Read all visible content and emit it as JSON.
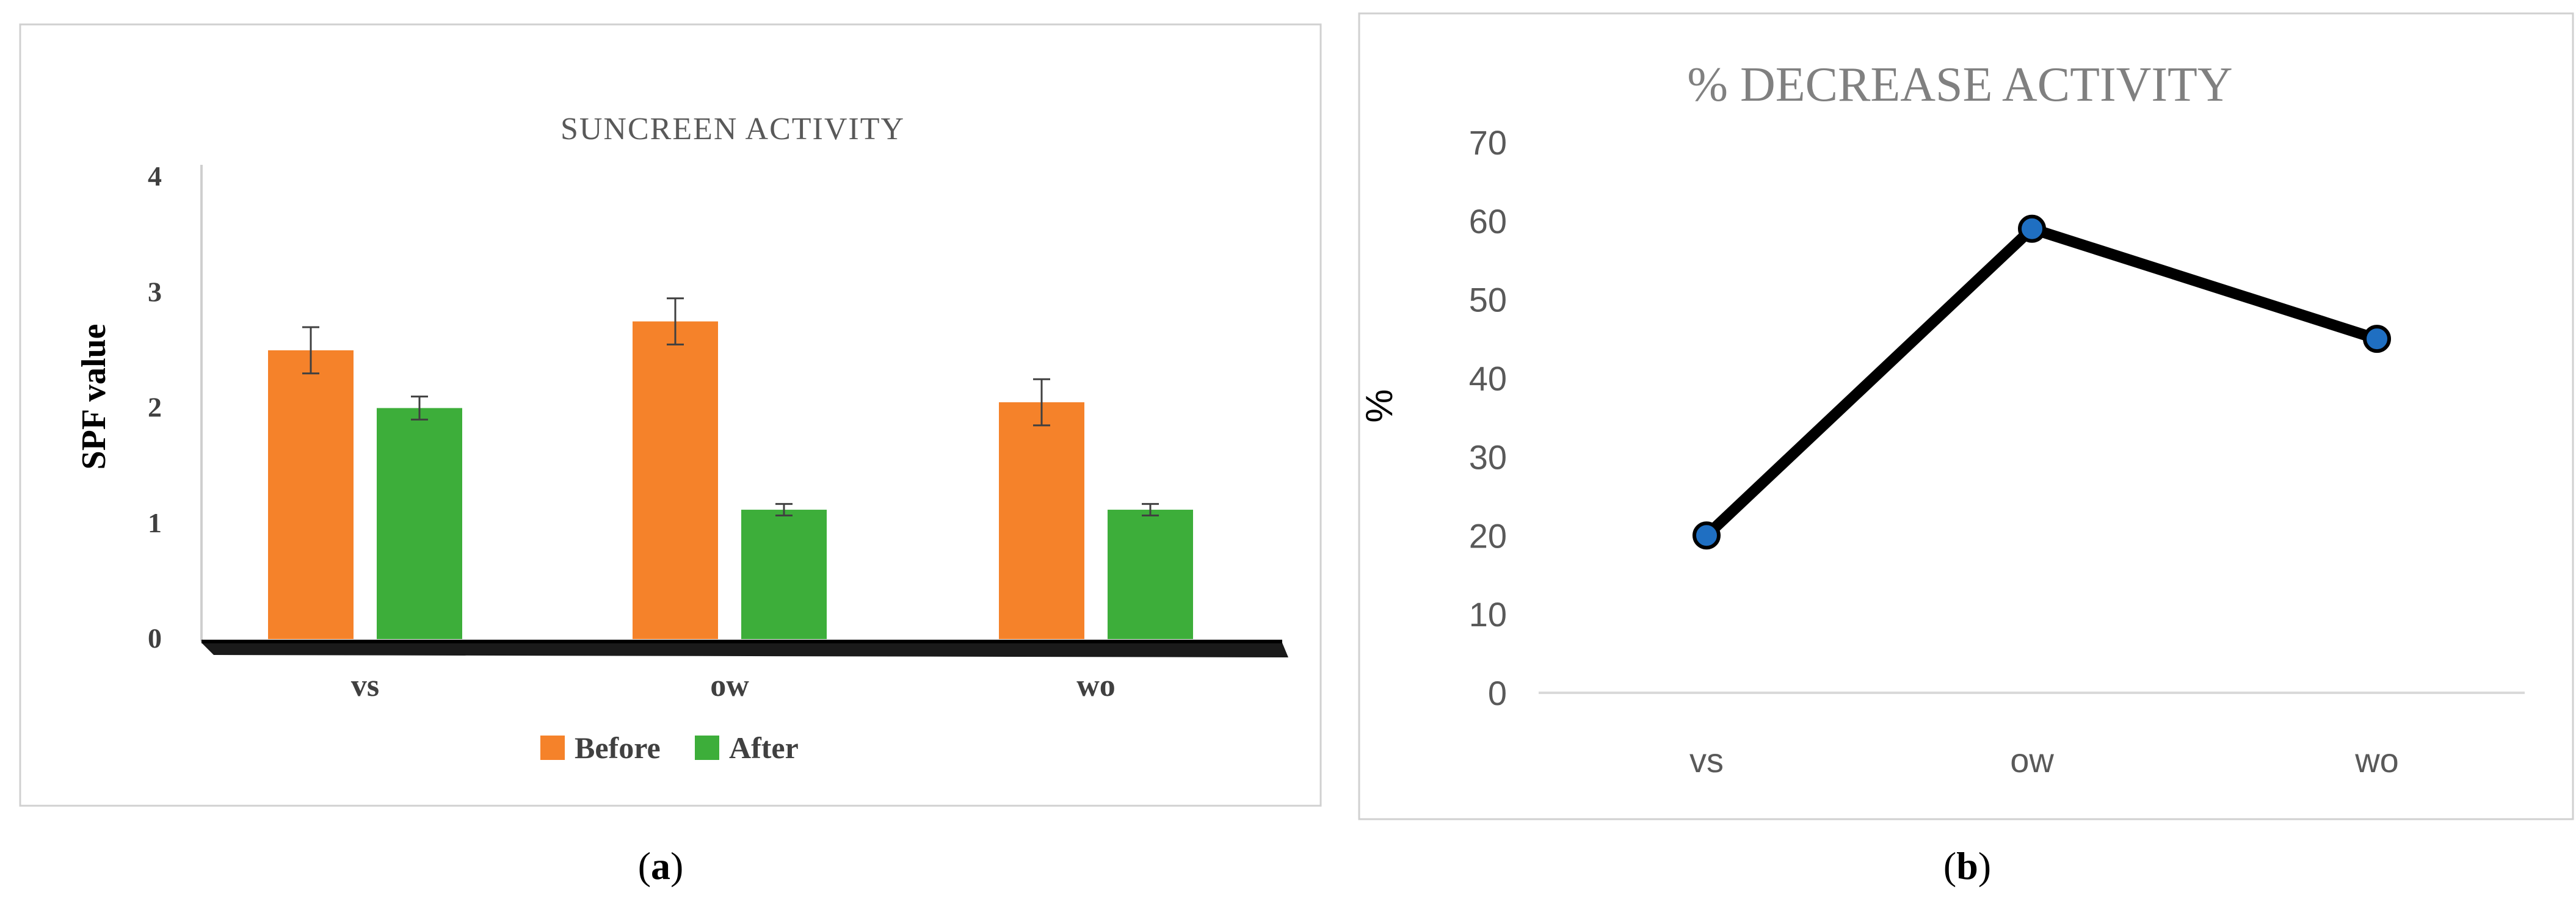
{
  "panel_a": {
    "caption": "a"
  },
  "panel_b": {
    "caption": "b"
  },
  "colors": {
    "before": "#F5822A",
    "after": "#3DAE3A",
    "line": "#000000",
    "marker": "#1F6FC2",
    "title_b": "#808080",
    "tick_b": "#595959"
  },
  "chart_data": [
    {
      "type": "bar",
      "title": "SUNCREEN ACTIVITY",
      "xlabel": "",
      "ylabel": "SPF value",
      "categories": [
        "vs",
        "ow",
        "wo"
      ],
      "series": [
        {
          "name": "Before",
          "values": [
            2.5,
            2.75,
            2.05
          ],
          "errors": [
            0.2,
            0.2,
            0.2
          ]
        },
        {
          "name": "After",
          "values": [
            2.0,
            1.12,
            1.12
          ],
          "errors": [
            0.1,
            0.05,
            0.05
          ]
        }
      ],
      "yticks": [
        "0",
        "1",
        "2",
        "3",
        "4"
      ],
      "ylim": [
        0,
        4
      ],
      "grid": false,
      "legend": "bottom"
    },
    {
      "type": "line",
      "title": "% DECREASE ACTIVITY",
      "xlabel": "",
      "ylabel": "%",
      "categories": [
        "vs",
        "ow",
        "wo"
      ],
      "series": [
        {
          "values": [
            20,
            59,
            45
          ]
        }
      ],
      "yticks": [
        "0",
        "10",
        "20",
        "30",
        "40",
        "50",
        "60",
        "70"
      ],
      "ylim": [
        0,
        70
      ],
      "grid": false,
      "legend": "none"
    }
  ]
}
